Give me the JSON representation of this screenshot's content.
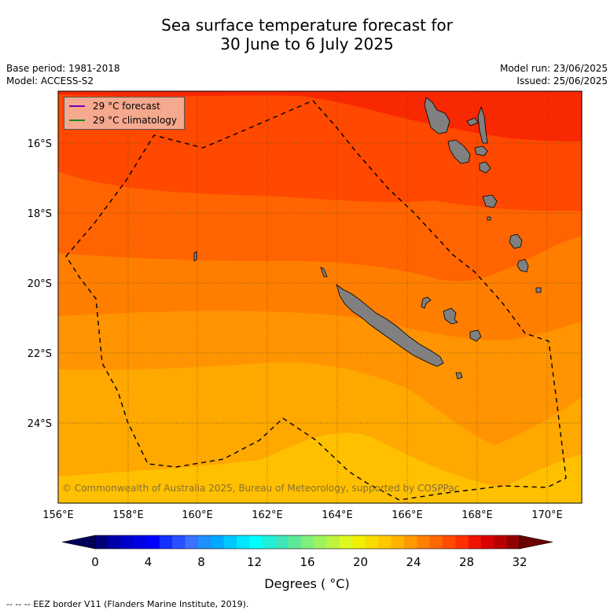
{
  "title_line1": "Sea surface temperature forecast for",
  "title_line2": "30 June to 6 July 2025",
  "meta_left": [
    "Base period: 1981-2018",
    "Model: ACCESS-S2"
  ],
  "meta_right": [
    "Model run: 23/06/2025",
    "Issued: 25/06/2025"
  ],
  "legend": {
    "forecast": {
      "label": "29 °C  forecast",
      "color": "#7b00a8"
    },
    "climatology": {
      "label": "29 °C  climatology",
      "color": "#1a8a1a"
    }
  },
  "lon_ticks": [
    "156°E",
    "158°E",
    "160°E",
    "162°E",
    "164°E",
    "166°E",
    "168°E",
    "170°E"
  ],
  "lat_ticks": [
    "16°S",
    "18°S",
    "20°S",
    "22°S",
    "24°S"
  ],
  "copyright": "© Commonwealth of Australia 2025, Bureau of Meteorology, supported by COSPPac",
  "colorbar": {
    "ticks": [
      "0",
      "4",
      "8",
      "12",
      "16",
      "20",
      "24",
      "28",
      "32"
    ],
    "units": "Degrees ( °C)",
    "colors": [
      "#00007a",
      "#0000a8",
      "#0000cc",
      "#0000e6",
      "#0000ff",
      "#1430ff",
      "#2850ff",
      "#3c70ff",
      "#1e90ff",
      "#00a8ff",
      "#00c8ff",
      "#00e6ff",
      "#00ffff",
      "#20f0d8",
      "#40e6b8",
      "#5ee89a",
      "#7ef07c",
      "#9ef25e",
      "#bef440",
      "#def822",
      "#f0f000",
      "#fadc00",
      "#ffc800",
      "#ffb400",
      "#ff9a00",
      "#ff8000",
      "#ff6600",
      "#ff4c00",
      "#ff3000",
      "#f01400",
      "#d80000",
      "#b80000",
      "#900000"
    ],
    "under_color": "#00005a",
    "over_color": "#6a0000"
  },
  "footer": "-- -- -- EEZ border V11 (Flanders Marine Institute, 2019)."
}
